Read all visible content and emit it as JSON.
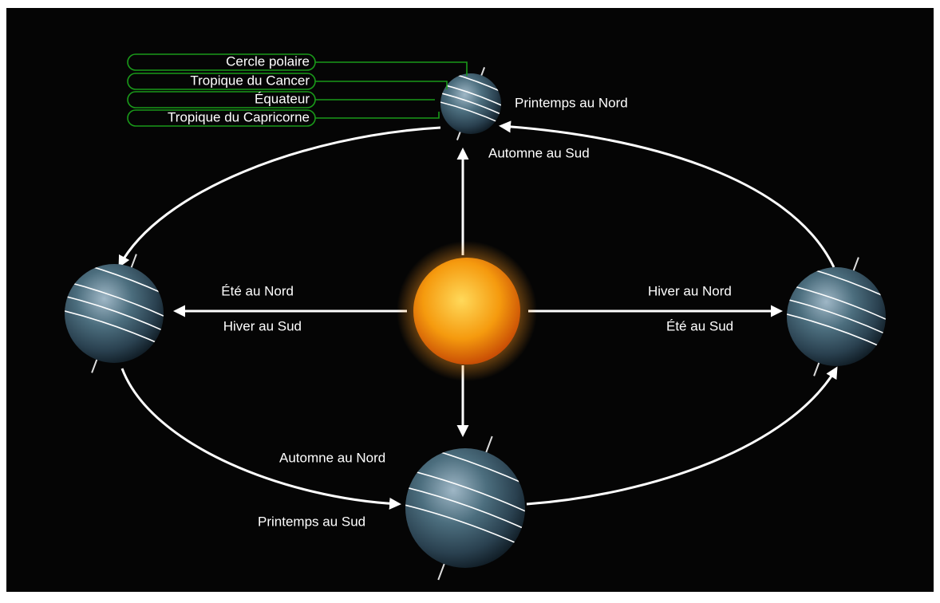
{
  "legend": {
    "items": [
      "Cercle polaire",
      "Tropique du Cancer",
      "Équateur",
      "Tropique du Capricorne"
    ]
  },
  "seasons": [
    {
      "north": "Printemps au Nord",
      "south": "Automne au Sud"
    },
    {
      "north": "Été au Nord",
      "south": "Hiver au Sud"
    },
    {
      "north": "Hiver au Nord",
      "south": "Été au Sud"
    },
    {
      "north": "Automne au Nord",
      "south": "Printemps au Sud"
    }
  ]
}
